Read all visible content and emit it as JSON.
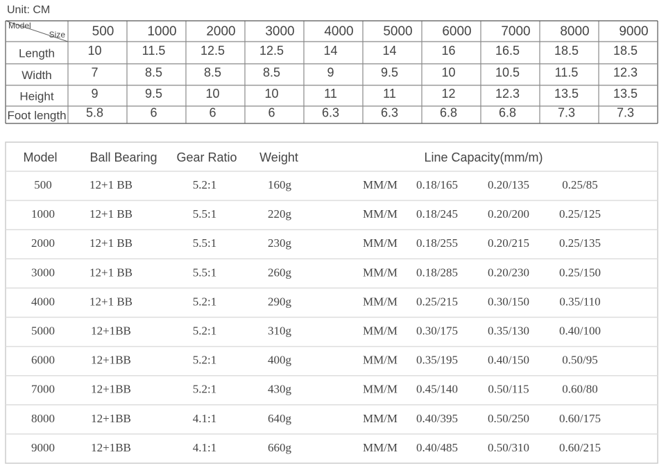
{
  "unit": "Unit: CM",
  "size_table": {
    "corner_row_label": "Model",
    "corner_col_label": "Size",
    "models": [
      "500",
      "1000",
      "2000",
      "3000",
      "4000",
      "5000",
      "6000",
      "7000",
      "8000",
      "9000"
    ],
    "rows": [
      {
        "label": "Length",
        "values": [
          "10",
          "11.5",
          "12.5",
          "12.5",
          "14",
          "14",
          "16",
          "16.5",
          "18.5",
          "18.5"
        ]
      },
      {
        "label": "Width",
        "values": [
          "7",
          "8.5",
          "8.5",
          "8.5",
          "9",
          "9.5",
          "10",
          "10.5",
          "11.5",
          "12.3"
        ]
      },
      {
        "label": "Height",
        "values": [
          "9",
          "9.5",
          "10",
          "10",
          "11",
          "11",
          "12",
          "12.3",
          "13.5",
          "13.5"
        ]
      },
      {
        "label": "Foot length",
        "values": [
          "5.8",
          "6",
          "6",
          "6",
          "6.3",
          "6.3",
          "6.8",
          "6.8",
          "7.3",
          "7.3"
        ]
      }
    ]
  },
  "spec_table": {
    "headers": [
      "Model",
      "Ball Bearing",
      "Gear Ratio",
      "Weight",
      "Line Capacity(mm/m)"
    ],
    "rows": [
      [
        "500",
        "12+1 BB",
        "5.2:1",
        "160g",
        "MM/M",
        "0.18/165",
        "0.20/135",
        "0.25/85"
      ],
      [
        "1000",
        "12+1 BB",
        "5.5:1",
        "220g",
        "MM/M",
        "0.18/245",
        "0.20/200",
        "0.25/125"
      ],
      [
        "2000",
        "12+1 BB",
        "5.5:1",
        "230g",
        "MM/M",
        "0.18/255",
        "0.20/215",
        "0.25/135"
      ],
      [
        "3000",
        "12+1 BB",
        "5.5:1",
        "260g",
        "MM/M",
        "0.18/285",
        "0.20/230",
        "0.25/150"
      ],
      [
        "4000",
        "12+1 BB",
        "5.2:1",
        "290g",
        "MM/M",
        "0.25/215",
        "0.30/150",
        "0.35/110"
      ],
      [
        "5000",
        "12+1BB",
        "5.2:1",
        "310g",
        "MM/M",
        "0.30/175",
        "0.35/130",
        "0.40/100"
      ],
      [
        "6000",
        "12+1BB",
        "5.2:1",
        "400g",
        "MM/M",
        "0.35/195",
        "0.40/150",
        "0.50/95"
      ],
      [
        "7000",
        "12+1BB",
        "5.2:1",
        "430g",
        "MM/M",
        "0.45/140",
        "0.50/115",
        "0.60/80"
      ],
      [
        "8000",
        "12+1BB",
        "4.1:1",
        "640g",
        "MM/M",
        "0.40/395",
        "0.50/250",
        "0.60/175"
      ],
      [
        "9000",
        "12+1BB",
        "4.1:1",
        "660g",
        "MM/M",
        "0.40/485",
        "0.50/310",
        "0.60/215"
      ]
    ]
  }
}
